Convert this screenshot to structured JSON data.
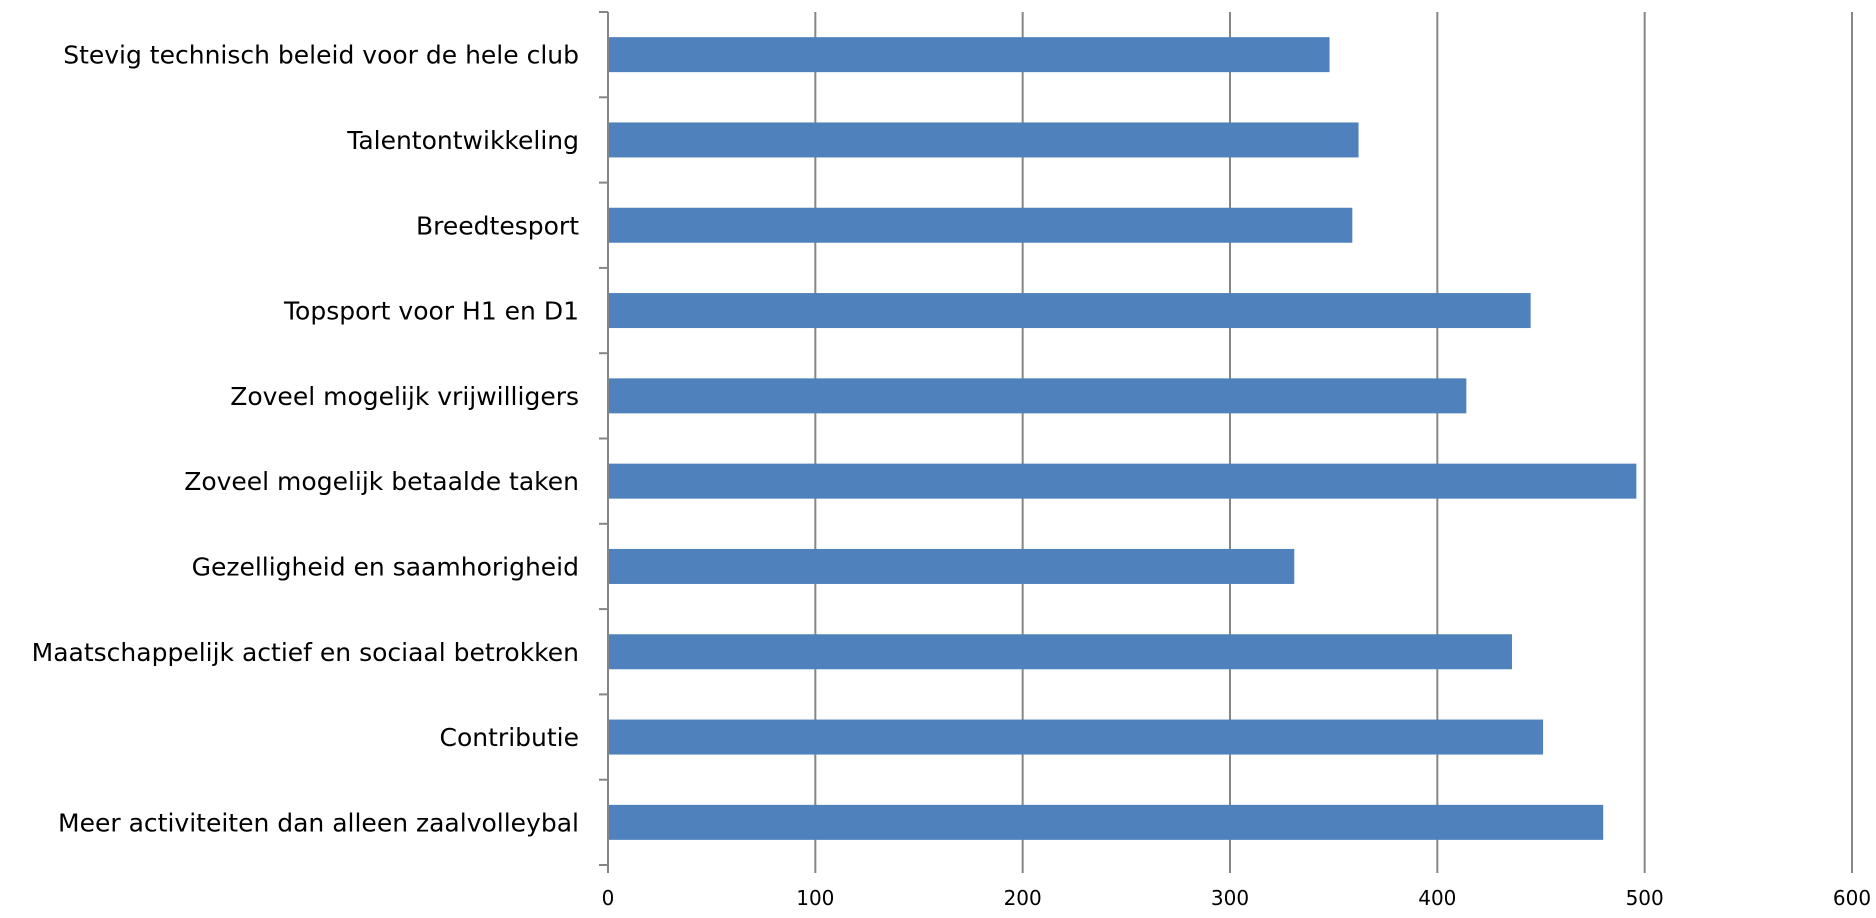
{
  "chart_data": {
    "type": "bar",
    "orientation": "horizontal",
    "categories": [
      "Stevig technisch beleid voor de hele club",
      "Talentontwikkeling",
      "Breedtesport",
      "Topsport voor H1 en D1",
      "Zoveel mogelijk vrijwilligers",
      "Zoveel mogelijk betaalde taken",
      "Gezelligheid en saamhorigheid",
      "Maatschappelijk actief en sociaal betrokken",
      "Contributie",
      "Meer activiteiten dan alleen zaalvolleybal"
    ],
    "values": [
      348,
      362,
      359,
      445,
      414,
      496,
      331,
      436,
      451,
      480
    ],
    "xlim": [
      0,
      600
    ],
    "x_ticks": [
      "0",
      "100",
      "200",
      "300",
      "400",
      "500",
      "600"
    ],
    "title": "",
    "xlabel": "",
    "ylabel": "",
    "grid": "vertical",
    "legend": "none",
    "colors": {
      "bar": "#4f81bd",
      "grid": "#868686",
      "text": "#000000"
    }
  }
}
